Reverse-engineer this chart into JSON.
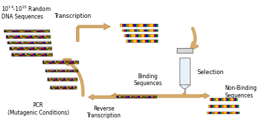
{
  "arrow_color": "#d4a96a",
  "arrow_edge": "#b8863a",
  "dna_colors_top": [
    "#0000cc",
    "#ffcc00",
    "#cc0000",
    "#00aa00",
    "#ff6600",
    "#aa00aa"
  ],
  "dna_colors_bot": [
    "#cc0000",
    "#00aa00",
    "#ffcc00",
    "#ff6600",
    "#0000cc",
    "#cc0000"
  ],
  "rna_colors": [
    "#ffcc00",
    "#cc0000",
    "#0000cc",
    "#00aa00",
    "#ff6600",
    "#ffcc00"
  ],
  "label_pool": "$10^{14}$-$10^{15}$ Random\nDNA Sequences",
  "label_transcript": "Transcription",
  "label_selection": "Selection",
  "label_nonbind": "Non-Binding\nSequences",
  "label_bind": "Binding\nSequences",
  "label_rev": "Reverse\nTranscription",
  "label_pcr": "PCR\n(Mutagenic Conditions)"
}
